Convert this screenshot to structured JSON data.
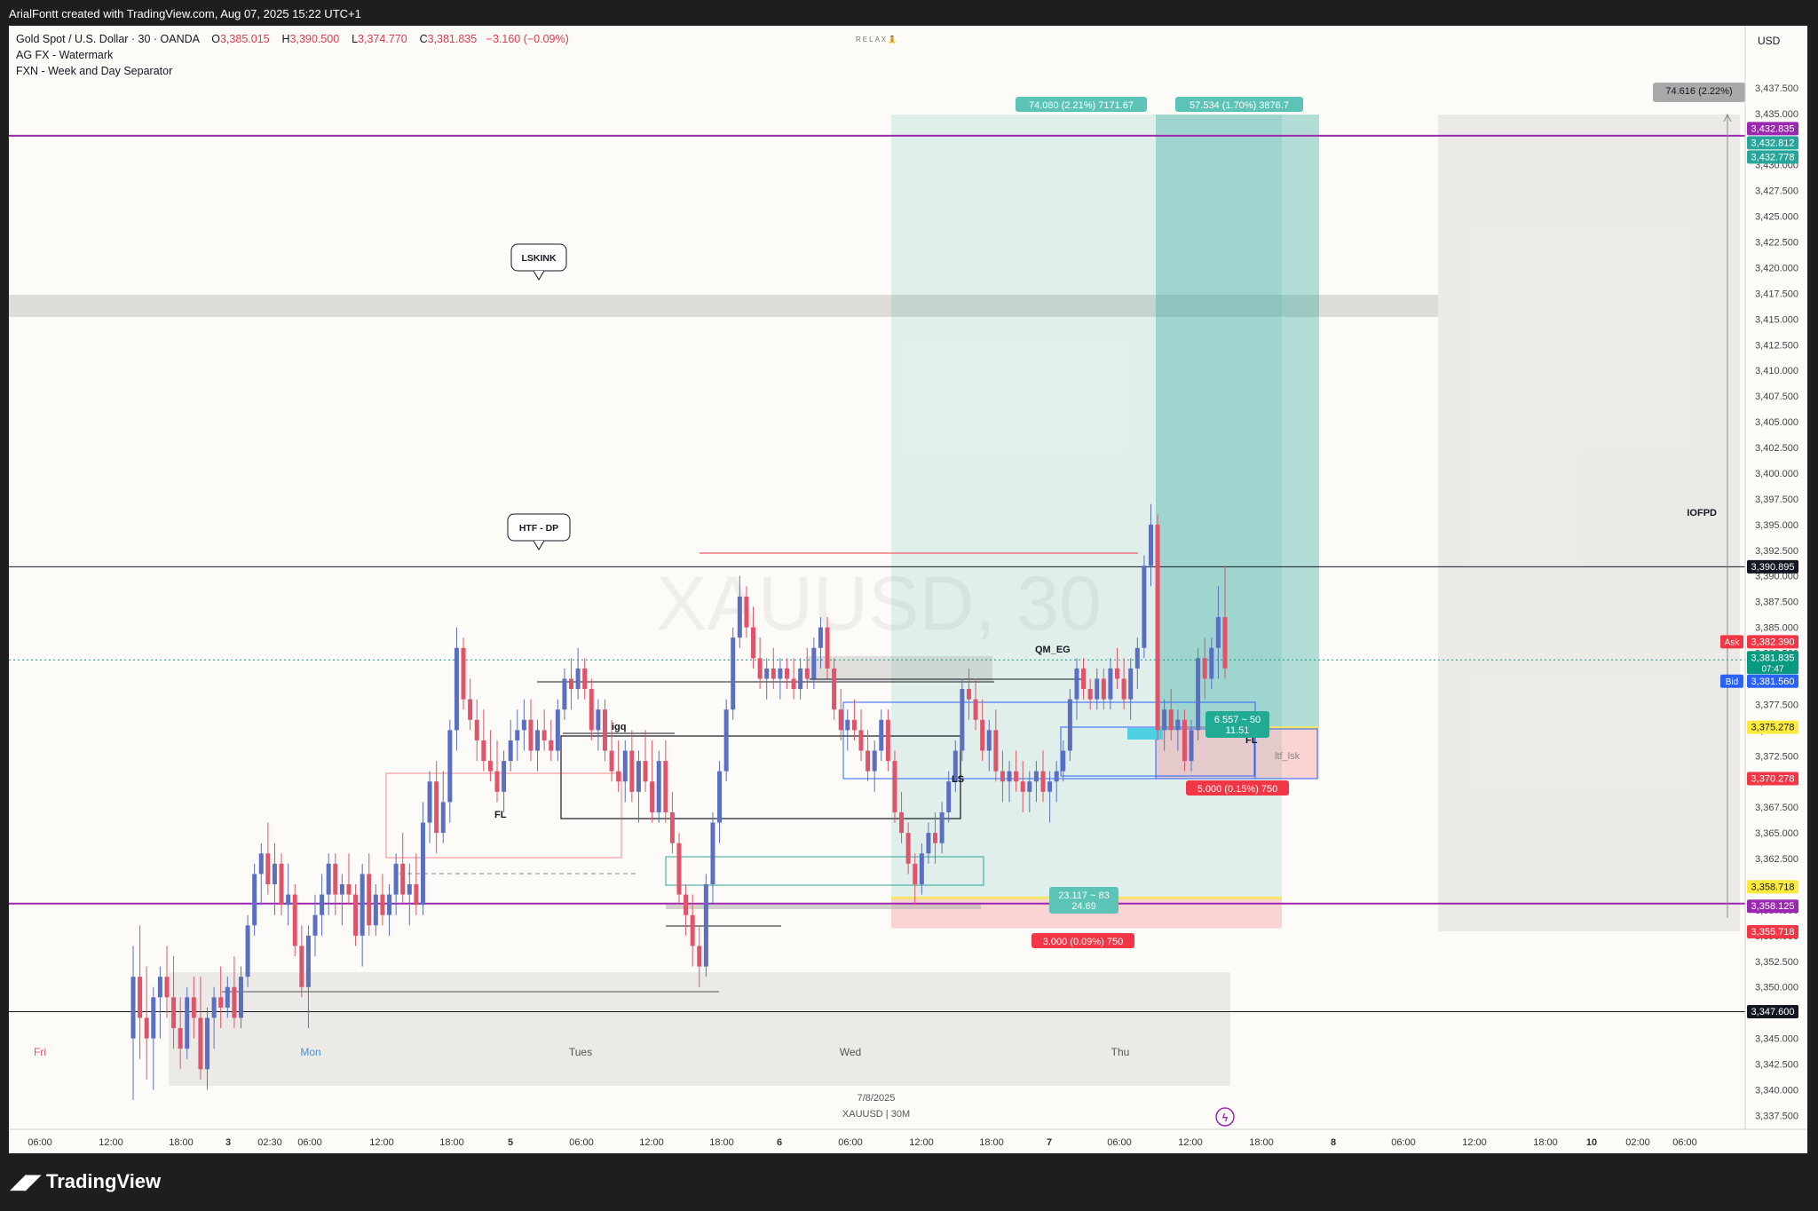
{
  "header": {
    "caption": "ArialFontt created with TradingView.com, Aug 07, 2025 15:22 UTC+1"
  },
  "legend": {
    "symbol": "Gold Spot / U.S. Dollar · 30 · OANDA",
    "o_label": "O",
    "o": "3,385.015",
    "h_label": "H",
    "h": "3,390.500",
    "l_label": "L",
    "l": "3,374.770",
    "c_label": "C",
    "c": "3,381.835",
    "chg": "−3.160 (−0.09%)",
    "indicator1": "AG FX - Watermark",
    "indicator2": "FXN - Week and Day Separator",
    "relax": "RELAX🧘"
  },
  "currency": "USD",
  "watermark": "XAUUSD, 30",
  "bottom_info": {
    "date": "7/8/2025",
    "symbol": "XAUUSD | 30M"
  },
  "brand": "TradingView",
  "chart_data": {
    "type": "candlestick",
    "symbol": "XAUUSD",
    "timeframe": "30",
    "ylim": [
      3336.5,
      3440.0
    ],
    "y_ticks": [
      3337.5,
      3340,
      3342.5,
      3345,
      3347.5,
      3350,
      3352.5,
      3355,
      3357.5,
      3360,
      3362.5,
      3365,
      3367.5,
      3370,
      3372.5,
      3375,
      3377.5,
      3380,
      3382.5,
      3385,
      3387.5,
      3390,
      3392.5,
      3395,
      3397.5,
      3400,
      3402.5,
      3405,
      3407.5,
      3410,
      3412.5,
      3415,
      3417.5,
      3420,
      3422.5,
      3425,
      3427.5,
      3430,
      3432.5,
      3435,
      3437.5
    ],
    "x_tick_labels": [
      "06:00",
      "12:00",
      "18:00",
      "3",
      "02:30",
      "06:00",
      "12:00",
      "18:00",
      "5",
      "06:00",
      "12:00",
      "18:00",
      "6",
      "06:00",
      "12:00",
      "18:00",
      "7",
      "06:00",
      "12:00",
      "18:00",
      "8",
      "06:00",
      "12:00",
      "18:00",
      "10",
      "02:00",
      "06:00"
    ],
    "day_labels": [
      "Fri",
      "Mon",
      "Tues",
      "Wed",
      "Thu"
    ],
    "price_labels": [
      {
        "text": "3,432.835",
        "bg": "#9c27b0"
      },
      {
        "text": "3,432.812",
        "bg": "#26a69a"
      },
      {
        "text": "3,432.778",
        "bg": "#26a69a"
      },
      {
        "text": "3,390.895",
        "bg": "#131722"
      },
      {
        "text": "3,382.390",
        "bg": "#f23645",
        "tag": "Ask"
      },
      {
        "text": "3,381.835",
        "bg": "#089981",
        "sub": "07:47"
      },
      {
        "text": "3,381.560",
        "bg": "#2962ff",
        "tag": "Bid"
      },
      {
        "text": "3,375.278",
        "bg": "#ffeb3b"
      },
      {
        "text": "3,370.278",
        "bg": "#f23645"
      },
      {
        "text": "3,358.718",
        "bg": "#ffeb3b"
      },
      {
        "text": "3,358.125",
        "bg": "#9c27b0"
      },
      {
        "text": "3,355.718",
        "bg": "#f23645"
      },
      {
        "text": "3,347.600",
        "bg": "#131722"
      }
    ],
    "annotations": {
      "lskink": "LSKINK",
      "htf_dp": "HTF - DP",
      "iofpd": "IOFPD",
      "fl": "FL",
      "igq": "igq",
      "qm_eg": "QM_EG",
      "ls": "LS",
      "fl2": "FL",
      "ltf_lsk": "ltf_lsk",
      "pos1_target": "74.060 (2.21%) 7171.67",
      "pos2_target": "57.534 (1.70%) 3876.7",
      "pos1_rr_a": "23.117 ~ 83",
      "pos1_rr_b": "24.69",
      "pos1_stop": "3.000 (0.09%) 750",
      "pos2_rr_a": "6.557 ~ 50",
      "pos2_rr_b": "11.51",
      "pos2_stop": "5.000 (0.15%) 750",
      "measure": "74.616 (2.22%)"
    },
    "candles": [
      [
        3345,
        3354,
        3339,
        3351
      ],
      [
        3351,
        3356,
        3343,
        3347
      ],
      [
        3347,
        3352,
        3341,
        3345
      ],
      [
        3345,
        3350,
        3340,
        3349
      ],
      [
        3349,
        3352,
        3345,
        3351
      ],
      [
        3351,
        3354,
        3347,
        3349
      ],
      [
        3349,
        3353,
        3344,
        3346
      ],
      [
        3346,
        3349,
        3342,
        3344
      ],
      [
        3344,
        3350,
        3343,
        3349
      ],
      [
        3349,
        3351,
        3345,
        3347
      ],
      [
        3347,
        3351,
        3341,
        3342
      ],
      [
        3342,
        3348,
        3340,
        3347
      ],
      [
        3347,
        3350,
        3344,
        3349
      ],
      [
        3349,
        3352,
        3346,
        3348
      ],
      [
        3348,
        3351,
        3347,
        3350
      ],
      [
        3350,
        3353,
        3346,
        3347
      ],
      [
        3347,
        3352,
        3346,
        3351
      ],
      [
        3351,
        3357,
        3350,
        3356
      ],
      [
        3356,
        3362,
        3355,
        3361
      ],
      [
        3361,
        3364,
        3358,
        3363
      ],
      [
        3363,
        3366,
        3359,
        3360
      ],
      [
        3360,
        3364,
        3357,
        3362
      ],
      [
        3362,
        3363,
        3357,
        3358
      ],
      [
        3358,
        3362,
        3356,
        3359
      ],
      [
        3359,
        3360,
        3353,
        3354
      ],
      [
        3354,
        3356,
        3349,
        3350
      ],
      [
        3350,
        3356,
        3346,
        3355
      ],
      [
        3355,
        3359,
        3353,
        3357
      ],
      [
        3357,
        3361,
        3355,
        3359
      ],
      [
        3359,
        3363,
        3357,
        3362
      ],
      [
        3362,
        3363,
        3357,
        3359
      ],
      [
        3359,
        3361,
        3356,
        3360
      ],
      [
        3360,
        3363,
        3358,
        3359
      ],
      [
        3359,
        3360,
        3354,
        3355
      ],
      [
        3355,
        3362,
        3352,
        3361
      ],
      [
        3361,
        3363,
        3355,
        3356
      ],
      [
        3356,
        3360,
        3355,
        3359
      ],
      [
        3359,
        3361,
        3356,
        3357
      ],
      [
        3357,
        3360,
        3355,
        3359
      ],
      [
        3359,
        3363,
        3357,
        3362
      ],
      [
        3362,
        3365,
        3358,
        3359
      ],
      [
        3359,
        3362,
        3356,
        3360
      ],
      [
        3360,
        3363,
        3357,
        3358
      ],
      [
        3358,
        3368,
        3357,
        3366
      ],
      [
        3366,
        3371,
        3364,
        3370
      ],
      [
        3370,
        3372,
        3363,
        3365
      ],
      [
        3365,
        3371,
        3364,
        3368
      ],
      [
        3368,
        3376,
        3366,
        3375
      ],
      [
        3375,
        3385,
        3373,
        3383
      ],
      [
        3383,
        3384,
        3377,
        3378
      ],
      [
        3378,
        3380,
        3375,
        3376
      ],
      [
        3376,
        3378,
        3372,
        3374
      ],
      [
        3374,
        3377,
        3371,
        3372
      ],
      [
        3372,
        3375,
        3370,
        3371
      ],
      [
        3371,
        3374,
        3368,
        3369
      ],
      [
        3369,
        3373,
        3367,
        3372
      ],
      [
        3372,
        3376,
        3371,
        3374
      ],
      [
        3374,
        3377,
        3372,
        3375
      ],
      [
        3375,
        3378,
        3373,
        3376
      ],
      [
        3376,
        3378,
        3372,
        3373
      ],
      [
        3373,
        3376,
        3371,
        3375
      ],
      [
        3375,
        3377,
        3373,
        3374
      ],
      [
        3374,
        3376,
        3372,
        3373
      ],
      [
        3373,
        3378,
        3372,
        3377
      ],
      [
        3377,
        3381,
        3376,
        3380
      ],
      [
        3380,
        3382,
        3377,
        3379
      ],
      [
        3379,
        3383,
        3378,
        3381
      ],
      [
        3381,
        3382,
        3378,
        3379
      ],
      [
        3379,
        3380,
        3374,
        3375
      ],
      [
        3375,
        3378,
        3373,
        3377
      ],
      [
        3377,
        3378,
        3372,
        3373
      ],
      [
        3373,
        3376,
        3370,
        3371
      ],
      [
        3371,
        3374,
        3369,
        3370
      ],
      [
        3370,
        3374,
        3368,
        3373
      ],
      [
        3373,
        3375,
        3368,
        3369
      ],
      [
        3369,
        3373,
        3366,
        3372
      ],
      [
        3372,
        3375,
        3369,
        3370
      ],
      [
        3370,
        3374,
        3366,
        3367
      ],
      [
        3367,
        3373,
        3366,
        3372
      ],
      [
        3372,
        3374,
        3366,
        3367
      ],
      [
        3367,
        3369,
        3363,
        3364
      ],
      [
        3364,
        3365,
        3358,
        3359
      ],
      [
        3359,
        3360,
        3355,
        3357
      ],
      [
        3357,
        3359,
        3352,
        3354
      ],
      [
        3354,
        3356,
        3350,
        3352
      ],
      [
        3352,
        3361,
        3351,
        3360
      ],
      [
        3360,
        3367,
        3358,
        3366
      ],
      [
        3366,
        3372,
        3364,
        3371
      ],
      [
        3371,
        3378,
        3370,
        3377
      ],
      [
        3377,
        3385,
        3376,
        3384
      ],
      [
        3384,
        3390,
        3383,
        3388
      ],
      [
        3388,
        3389,
        3384,
        3385
      ],
      [
        3385,
        3387,
        3381,
        3382
      ],
      [
        3382,
        3384,
        3379,
        3380
      ],
      [
        3380,
        3382,
        3378,
        3381
      ],
      [
        3381,
        3383,
        3379,
        3380
      ],
      [
        3380,
        3382,
        3378,
        3381
      ],
      [
        3381,
        3382,
        3379,
        3380
      ],
      [
        3380,
        3382,
        3378,
        3379
      ],
      [
        3379,
        3382,
        3378,
        3381
      ],
      [
        3381,
        3383,
        3379,
        3380
      ],
      [
        3380,
        3384,
        3379,
        3383
      ],
      [
        3383,
        3386,
        3381,
        3385
      ],
      [
        3385,
        3386,
        3380,
        3381
      ],
      [
        3381,
        3382,
        3376,
        3377
      ],
      [
        3377,
        3379,
        3374,
        3375
      ],
      [
        3375,
        3377,
        3373,
        3376
      ],
      [
        3376,
        3378,
        3374,
        3375
      ],
      [
        3375,
        3377,
        3372,
        3373
      ],
      [
        3373,
        3375,
        3370,
        3371
      ],
      [
        3371,
        3374,
        3369,
        3373
      ],
      [
        3373,
        3377,
        3372,
        3376
      ],
      [
        3376,
        3377,
        3371,
        3372
      ],
      [
        3372,
        3373,
        3366,
        3367
      ],
      [
        3367,
        3369,
        3364,
        3365
      ],
      [
        3365,
        3366,
        3361,
        3362
      ],
      [
        3362,
        3363,
        3358,
        3360
      ],
      [
        3360,
        3364,
        3359,
        3363
      ],
      [
        3363,
        3366,
        3362,
        3365
      ],
      [
        3365,
        3367,
        3362,
        3364
      ],
      [
        3364,
        3368,
        3363,
        3367
      ],
      [
        3367,
        3371,
        3366,
        3370
      ],
      [
        3370,
        3374,
        3369,
        3373
      ],
      [
        3373,
        3380,
        3372,
        3379
      ],
      [
        3379,
        3381,
        3376,
        3378
      ],
      [
        3378,
        3380,
        3375,
        3376
      ],
      [
        3376,
        3378,
        3372,
        3373
      ],
      [
        3373,
        3376,
        3371,
        3375
      ],
      [
        3375,
        3377,
        3370,
        3371
      ],
      [
        3371,
        3373,
        3368,
        3370
      ],
      [
        3370,
        3372,
        3368,
        3371
      ],
      [
        3371,
        3373,
        3369,
        3370
      ],
      [
        3370,
        3372,
        3367,
        3369
      ],
      [
        3369,
        3371,
        3367,
        3370
      ],
      [
        3370,
        3372,
        3368,
        3371
      ],
      [
        3371,
        3373,
        3368,
        3369
      ],
      [
        3369,
        3371,
        3366,
        3370
      ],
      [
        3370,
        3372,
        3368,
        3371
      ],
      [
        3371,
        3374,
        3370,
        3373
      ],
      [
        3373,
        3379,
        3372,
        3378
      ],
      [
        3378,
        3382,
        3376,
        3381
      ],
      [
        3381,
        3382,
        3378,
        3379
      ],
      [
        3379,
        3380,
        3377,
        3378
      ],
      [
        3378,
        3381,
        3377,
        3380
      ],
      [
        3380,
        3381,
        3377,
        3378
      ],
      [
        3378,
        3382,
        3377,
        3381
      ],
      [
        3381,
        3383,
        3379,
        3380
      ],
      [
        3380,
        3382,
        3377,
        3378
      ],
      [
        3378,
        3382,
        3376,
        3381
      ],
      [
        3381,
        3384,
        3379,
        3383
      ],
      [
        3383,
        3392,
        3382,
        3391
      ],
      [
        3391,
        3397,
        3389,
        3395
      ],
      [
        3395,
        3396,
        3374,
        3375
      ],
      [
        3375,
        3378,
        3373,
        3377
      ],
      [
        3377,
        3379,
        3374,
        3375
      ],
      [
        3375,
        3377,
        3373,
        3376
      ],
      [
        3376,
        3377,
        3371,
        3372
      ],
      [
        3372,
        3376,
        3371,
        3375
      ],
      [
        3375,
        3383,
        3374,
        3382
      ],
      [
        3382,
        3384,
        3378,
        3380
      ],
      [
        3380,
        3384,
        3379,
        3383
      ],
      [
        3383,
        3389,
        3380,
        3386
      ],
      [
        3386,
        3391,
        3380,
        3381
      ]
    ]
  }
}
